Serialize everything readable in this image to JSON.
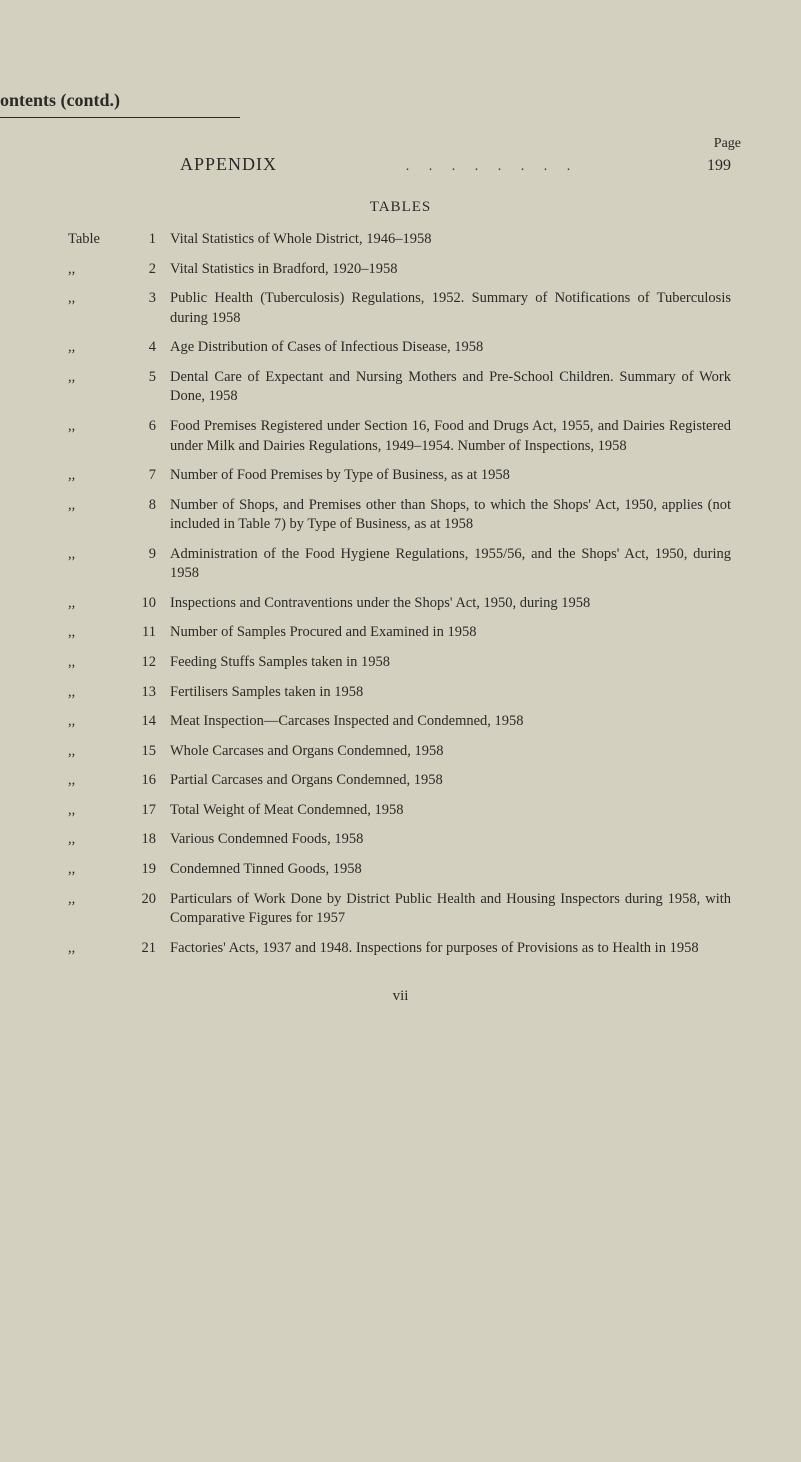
{
  "colors": {
    "background": "#d4d0bf",
    "text": "#2a2a28"
  },
  "header": {
    "title": "ontents (contd.)"
  },
  "page_label": "Page",
  "appendix": {
    "title": "APPENDIX",
    "dots": ". .      . .      . .      . .",
    "page": "199"
  },
  "tables_heading": "TABLES",
  "label_first": "Table",
  "label_ditto": ",,",
  "entries": [
    {
      "label": "Table",
      "num": "1",
      "desc": "Vital Statistics of Whole District, 1946–1958"
    },
    {
      "label": ",,",
      "num": "2",
      "desc": "Vital Statistics in Bradford, 1920–1958"
    },
    {
      "label": ",,",
      "num": "3",
      "desc": "Public Health (Tuberculosis) Regulations, 1952. Summary of Notifications of Tuberculosis during 1958"
    },
    {
      "label": ",,",
      "num": "4",
      "desc": "Age Distribution of Cases of Infectious Disease, 1958"
    },
    {
      "label": ",,",
      "num": "5",
      "desc": "Dental Care of Expectant and Nursing Mothers and Pre-School Children. Summary of Work Done, 1958"
    },
    {
      "label": ",,",
      "num": "6",
      "desc": "Food Premises Registered under Section 16, Food and Drugs Act, 1955, and Dairies Registered under Milk and Dairies Regulations, 1949–1954. Number of Inspections, 1958"
    },
    {
      "label": ",,",
      "num": "7",
      "desc": "Number of Food Premises by Type of Business, as at 1958"
    },
    {
      "label": ",,",
      "num": "8",
      "desc": "Number of Shops, and Premises other than Shops, to which the Shops' Act, 1950, applies (not included in Table 7) by Type of Business, as at 1958"
    },
    {
      "label": ",,",
      "num": "9",
      "desc": "Administration of the Food Hygiene Regulations, 1955/56, and the Shops' Act, 1950, during 1958"
    },
    {
      "label": ",,",
      "num": "10",
      "desc": "Inspections and Contraventions under the Shops' Act, 1950, during 1958"
    },
    {
      "label": ",,",
      "num": "11",
      "desc": "Number of Samples Procured and Examined in 1958"
    },
    {
      "label": ",,",
      "num": "12",
      "desc": "Feeding Stuffs Samples taken in 1958"
    },
    {
      "label": ",,",
      "num": "13",
      "desc": "Fertilisers Samples taken in 1958"
    },
    {
      "label": ",,",
      "num": "14",
      "desc": "Meat Inspection—Carcases Inspected and Condemned, 1958"
    },
    {
      "label": ",,",
      "num": "15",
      "desc": "Whole Carcases and Organs Condemned, 1958"
    },
    {
      "label": ",,",
      "num": "16",
      "desc": "Partial Carcases and Organs Condemned, 1958"
    },
    {
      "label": ",,",
      "num": "17",
      "desc": "Total Weight of Meat Condemned, 1958"
    },
    {
      "label": ",,",
      "num": "18",
      "desc": "Various Condemned Foods, 1958"
    },
    {
      "label": ",,",
      "num": "19",
      "desc": "Condemned Tinned Goods, 1958"
    },
    {
      "label": ",,",
      "num": "20",
      "desc": "Particulars of Work Done by District Public Health and Housing Inspectors during 1958, with Comparative Figures for 1957"
    },
    {
      "label": ",,",
      "num": "21",
      "desc": "Factories' Acts, 1937 and 1948. Inspections for purposes of Provisions as to Health in 1958"
    }
  ],
  "footer_page": "vii"
}
